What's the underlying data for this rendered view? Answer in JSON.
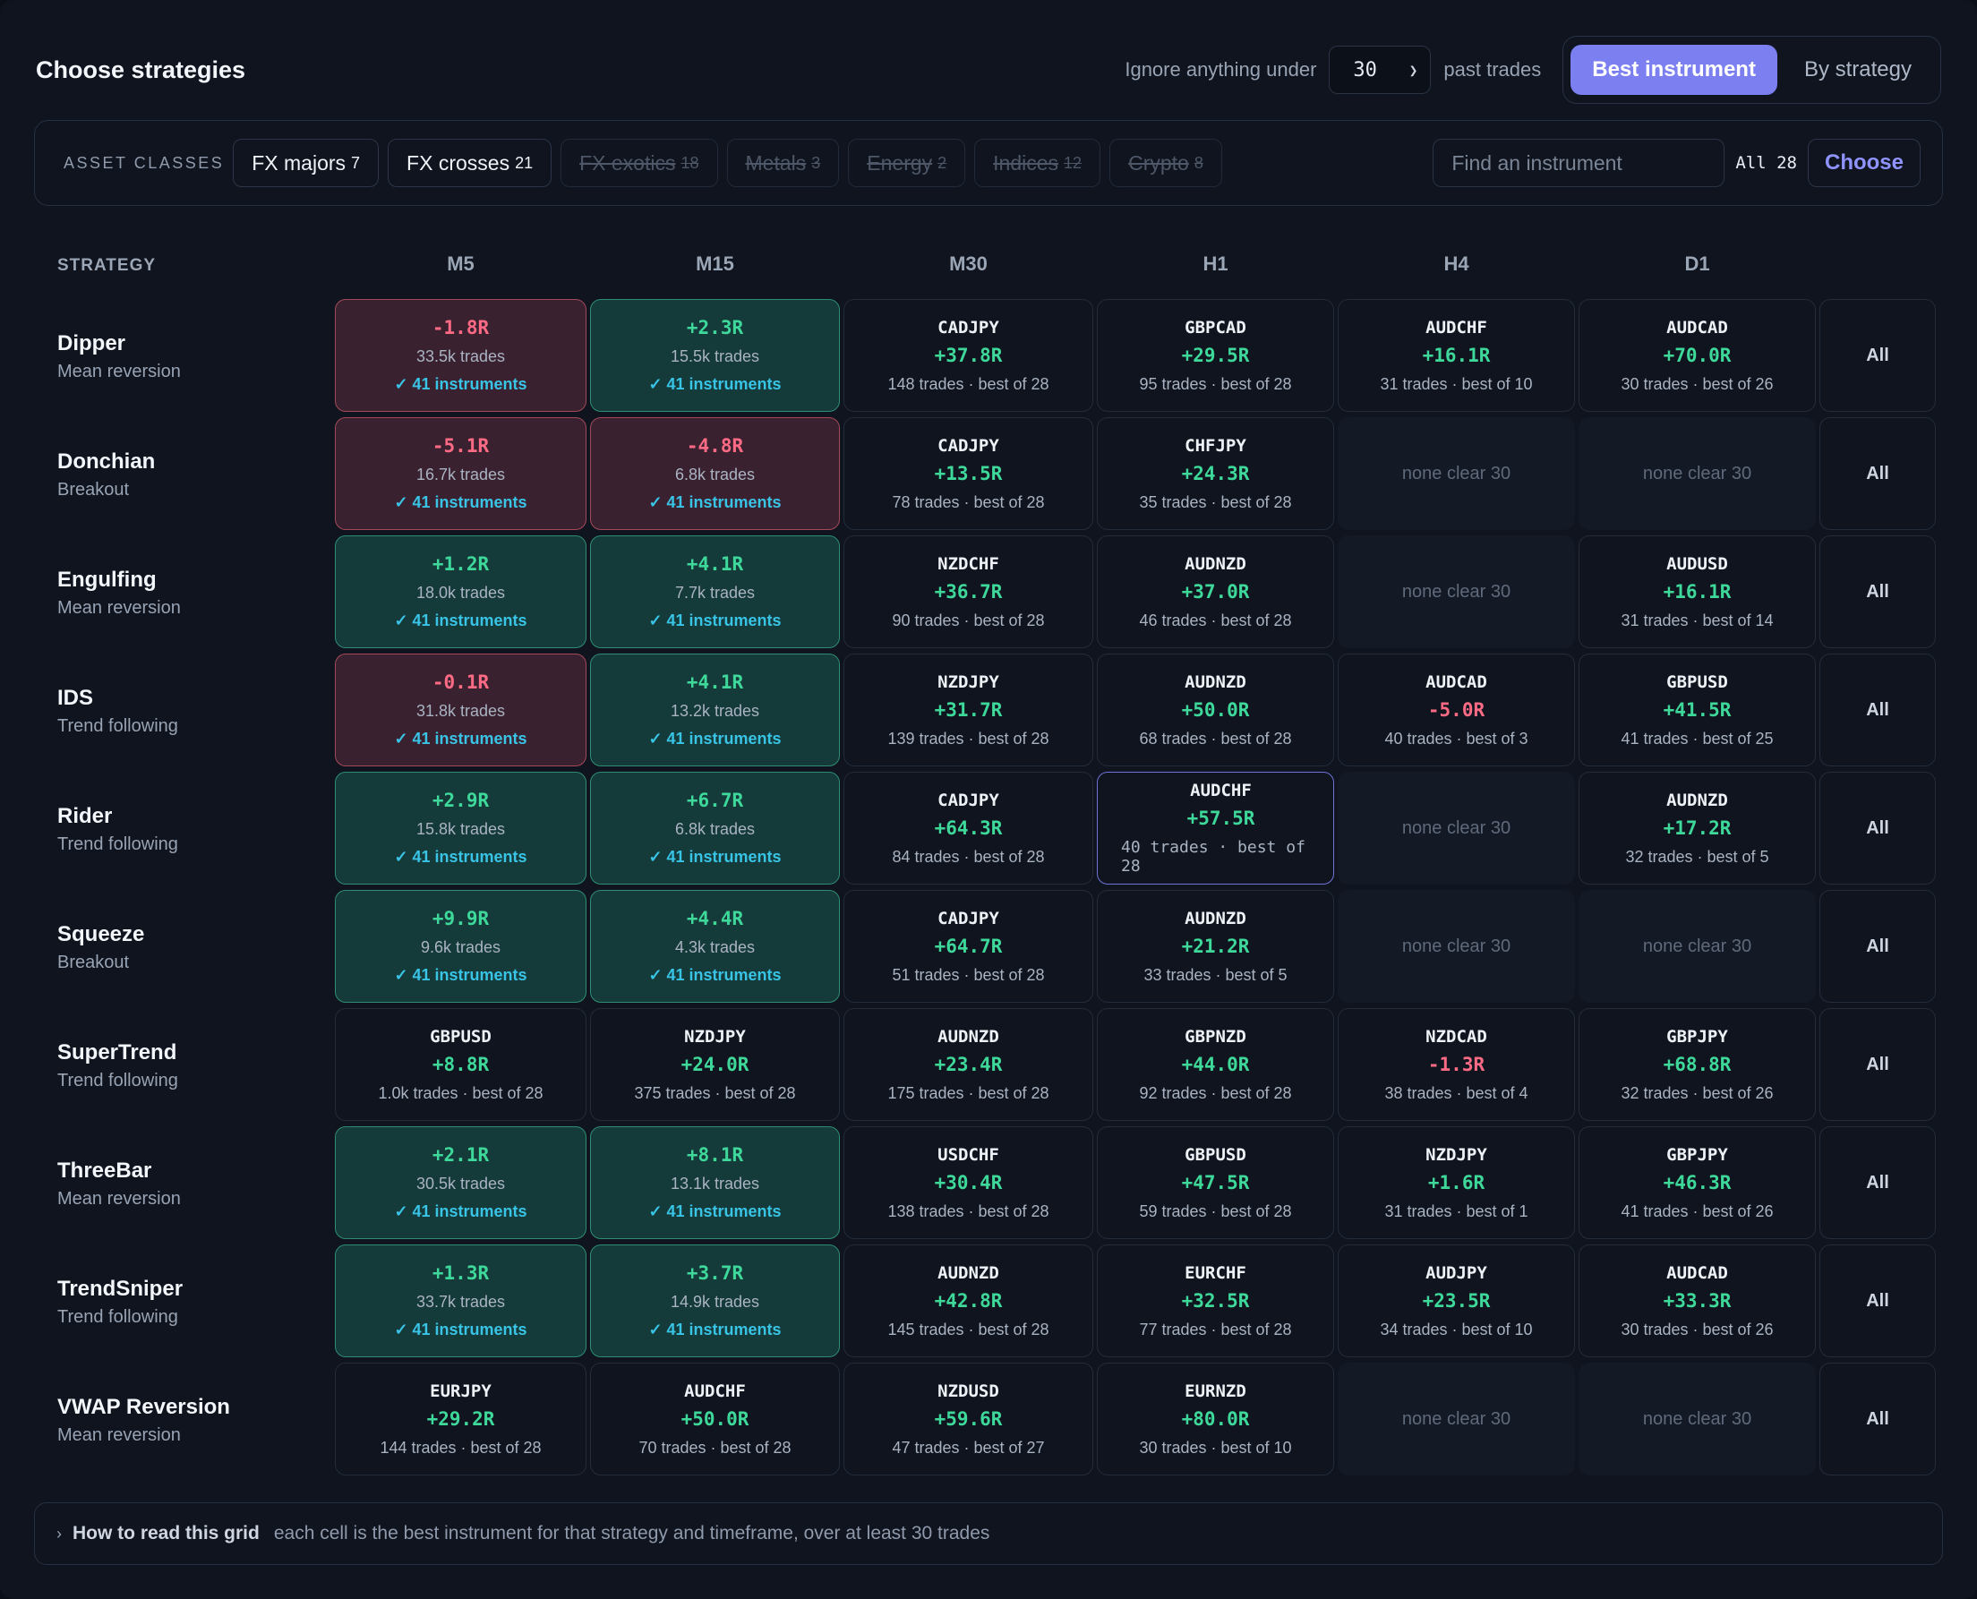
{
  "header": {
    "title": "Choose strategies",
    "ignore_label": "Ignore anything under",
    "min_trades": "30",
    "past_trades_label": "past trades",
    "view_best": "Best instrument",
    "view_strategy": "By strategy"
  },
  "filters": {
    "label": "ASSET CLASSES",
    "chips": [
      {
        "label": "FX majors",
        "count": "7",
        "enabled": true
      },
      {
        "label": "FX crosses",
        "count": "21",
        "enabled": true
      },
      {
        "label": "FX exotics",
        "count": "18",
        "enabled": false
      },
      {
        "label": "Metals",
        "count": "3",
        "enabled": false
      },
      {
        "label": "Energy",
        "count": "2",
        "enabled": false
      },
      {
        "label": "Indices",
        "count": "12",
        "enabled": false
      },
      {
        "label": "Crypto",
        "count": "8",
        "enabled": false
      }
    ],
    "search_placeholder": "Find an instrument",
    "all_label": "All 28",
    "choose_label": "Choose"
  },
  "grid": {
    "strategy_header": "STRATEGY",
    "timeframes": [
      "M5",
      "M15",
      "M30",
      "H1",
      "H4",
      "D1"
    ],
    "all_label": "All",
    "rows": [
      {
        "name": "Dipper",
        "type": "Mean reversion",
        "cells": [
          {
            "kind": "agg",
            "r": "-1.8R",
            "trades": "33.5k trades",
            "inst": "✓ 41 instruments"
          },
          {
            "kind": "agg",
            "r": "+2.3R",
            "trades": "15.5k trades",
            "inst": "✓ 41 instruments"
          },
          {
            "kind": "best",
            "sym": "CADJPY",
            "r": "+37.8R",
            "sub": "148 trades · best of 28"
          },
          {
            "kind": "best",
            "sym": "GBPCAD",
            "r": "+29.5R",
            "sub": "95 trades · best of 28"
          },
          {
            "kind": "best",
            "sym": "AUDCHF",
            "r": "+16.1R",
            "sub": "31 trades · best of 10"
          },
          {
            "kind": "best",
            "sym": "AUDCAD",
            "r": "+70.0R",
            "sub": "30 trades · best of 26"
          }
        ]
      },
      {
        "name": "Donchian",
        "type": "Breakout",
        "cells": [
          {
            "kind": "agg",
            "r": "-5.1R",
            "trades": "16.7k trades",
            "inst": "✓ 41 instruments"
          },
          {
            "kind": "agg",
            "r": "-4.8R",
            "trades": "6.8k trades",
            "inst": "✓ 41 instruments"
          },
          {
            "kind": "best",
            "sym": "CADJPY",
            "r": "+13.5R",
            "sub": "78 trades · best of 28"
          },
          {
            "kind": "best",
            "sym": "CHFJPY",
            "r": "+24.3R",
            "sub": "35 trades · best of 28"
          },
          {
            "kind": "none",
            "text": "none clear 30"
          },
          {
            "kind": "none",
            "text": "none clear 30"
          }
        ]
      },
      {
        "name": "Engulfing",
        "type": "Mean reversion",
        "cells": [
          {
            "kind": "agg",
            "r": "+1.2R",
            "trades": "18.0k trades",
            "inst": "✓ 41 instruments"
          },
          {
            "kind": "agg",
            "r": "+4.1R",
            "trades": "7.7k trades",
            "inst": "✓ 41 instruments"
          },
          {
            "kind": "best",
            "sym": "NZDCHF",
            "r": "+36.7R",
            "sub": "90 trades · best of 28"
          },
          {
            "kind": "best",
            "sym": "AUDNZD",
            "r": "+37.0R",
            "sub": "46 trades · best of 28"
          },
          {
            "kind": "none",
            "text": "none clear 30"
          },
          {
            "kind": "best",
            "sym": "AUDUSD",
            "r": "+16.1R",
            "sub": "31 trades · best of 14"
          }
        ]
      },
      {
        "name": "IDS",
        "type": "Trend following",
        "cells": [
          {
            "kind": "agg",
            "r": "-0.1R",
            "trades": "31.8k trades",
            "inst": "✓ 41 instruments"
          },
          {
            "kind": "agg",
            "r": "+4.1R",
            "trades": "13.2k trades",
            "inst": "✓ 41 instruments"
          },
          {
            "kind": "best",
            "sym": "NZDJPY",
            "r": "+31.7R",
            "sub": "139 trades · best of 28"
          },
          {
            "kind": "best",
            "sym": "AUDNZD",
            "r": "+50.0R",
            "sub": "68 trades · best of 28"
          },
          {
            "kind": "best",
            "sym": "AUDCAD",
            "r": "-5.0R",
            "sub": "40 trades · best of 3"
          },
          {
            "kind": "best",
            "sym": "GBPUSD",
            "r": "+41.5R",
            "sub": "41 trades · best of 25"
          }
        ]
      },
      {
        "name": "Rider",
        "type": "Trend following",
        "cells": [
          {
            "kind": "agg",
            "r": "+2.9R",
            "trades": "15.8k trades",
            "inst": "✓ 41 instruments"
          },
          {
            "kind": "agg",
            "r": "+6.7R",
            "trades": "6.8k trades",
            "inst": "✓ 41 instruments"
          },
          {
            "kind": "best",
            "sym": "CADJPY",
            "r": "+64.3R",
            "sub": "84 trades · best of 28"
          },
          {
            "kind": "best",
            "sym": "AUDCHF",
            "r": "+57.5R",
            "sub": "40 trades · best of 28",
            "selected": true
          },
          {
            "kind": "none",
            "text": "none clear 30"
          },
          {
            "kind": "best",
            "sym": "AUDNZD",
            "r": "+17.2R",
            "sub": "32 trades · best of 5"
          }
        ]
      },
      {
        "name": "Squeeze",
        "type": "Breakout",
        "cells": [
          {
            "kind": "agg",
            "r": "+9.9R",
            "trades": "9.6k trades",
            "inst": "✓ 41 instruments"
          },
          {
            "kind": "agg",
            "r": "+4.4R",
            "trades": "4.3k trades",
            "inst": "✓ 41 instruments"
          },
          {
            "kind": "best",
            "sym": "CADJPY",
            "r": "+64.7R",
            "sub": "51 trades · best of 28"
          },
          {
            "kind": "best",
            "sym": "AUDNZD",
            "r": "+21.2R",
            "sub": "33 trades · best of 5"
          },
          {
            "kind": "none",
            "text": "none clear 30"
          },
          {
            "kind": "none",
            "text": "none clear 30"
          }
        ]
      },
      {
        "name": "SuperTrend",
        "type": "Trend following",
        "cells": [
          {
            "kind": "best",
            "sym": "GBPUSD",
            "r": "+8.8R",
            "sub": "1.0k trades · best of 28"
          },
          {
            "kind": "best",
            "sym": "NZDJPY",
            "r": "+24.0R",
            "sub": "375 trades · best of 28"
          },
          {
            "kind": "best",
            "sym": "AUDNZD",
            "r": "+23.4R",
            "sub": "175 trades · best of 28"
          },
          {
            "kind": "best",
            "sym": "GBPNZD",
            "r": "+44.0R",
            "sub": "92 trades · best of 28"
          },
          {
            "kind": "best",
            "sym": "NZDCAD",
            "r": "-1.3R",
            "sub": "38 trades · best of 4"
          },
          {
            "kind": "best",
            "sym": "GBPJPY",
            "r": "+68.8R",
            "sub": "32 trades · best of 26"
          }
        ]
      },
      {
        "name": "ThreeBar",
        "type": "Mean reversion",
        "cells": [
          {
            "kind": "agg",
            "r": "+2.1R",
            "trades": "30.5k trades",
            "inst": "✓ 41 instruments"
          },
          {
            "kind": "agg",
            "r": "+8.1R",
            "trades": "13.1k trades",
            "inst": "✓ 41 instruments"
          },
          {
            "kind": "best",
            "sym": "USDCHF",
            "r": "+30.4R",
            "sub": "138 trades · best of 28"
          },
          {
            "kind": "best",
            "sym": "GBPUSD",
            "r": "+47.5R",
            "sub": "59 trades · best of 28"
          },
          {
            "kind": "best",
            "sym": "NZDJPY",
            "r": "+1.6R",
            "sub": "31 trades · best of 1"
          },
          {
            "kind": "best",
            "sym": "GBPJPY",
            "r": "+46.3R",
            "sub": "41 trades · best of 26"
          }
        ]
      },
      {
        "name": "TrendSniper",
        "type": "Trend following",
        "cells": [
          {
            "kind": "agg",
            "r": "+1.3R",
            "trades": "33.7k trades",
            "inst": "✓ 41 instruments"
          },
          {
            "kind": "agg",
            "r": "+3.7R",
            "trades": "14.9k trades",
            "inst": "✓ 41 instruments"
          },
          {
            "kind": "best",
            "sym": "AUDNZD",
            "r": "+42.8R",
            "sub": "145 trades · best of 28"
          },
          {
            "kind": "best",
            "sym": "EURCHF",
            "r": "+32.5R",
            "sub": "77 trades · best of 28"
          },
          {
            "kind": "best",
            "sym": "AUDJPY",
            "r": "+23.5R",
            "sub": "34 trades · best of 10"
          },
          {
            "kind": "best",
            "sym": "AUDCAD",
            "r": "+33.3R",
            "sub": "30 trades · best of 26"
          }
        ]
      },
      {
        "name": "VWAP Reversion",
        "type": "Mean reversion",
        "cells": [
          {
            "kind": "best",
            "sym": "EURJPY",
            "r": "+29.2R",
            "sub": "144 trades · best of 28"
          },
          {
            "kind": "best",
            "sym": "AUDCHF",
            "r": "+50.0R",
            "sub": "70 trades · best of 28"
          },
          {
            "kind": "best",
            "sym": "NZDUSD",
            "r": "+59.6R",
            "sub": "47 trades · best of 27"
          },
          {
            "kind": "best",
            "sym": "EURNZD",
            "r": "+80.0R",
            "sub": "30 trades · best of 10"
          },
          {
            "kind": "none",
            "text": "none clear 30"
          },
          {
            "kind": "none",
            "text": "none clear 30"
          }
        ]
      }
    ]
  },
  "footer": {
    "title": "How to read this grid",
    "desc": "each cell is the best instrument for that strategy and timeframe, over at least 30 trades"
  },
  "colors": {
    "accent": "#7b7ff0",
    "positive": "#3ed99a",
    "negative": "#ff6b85",
    "info": "#39c4e6"
  }
}
